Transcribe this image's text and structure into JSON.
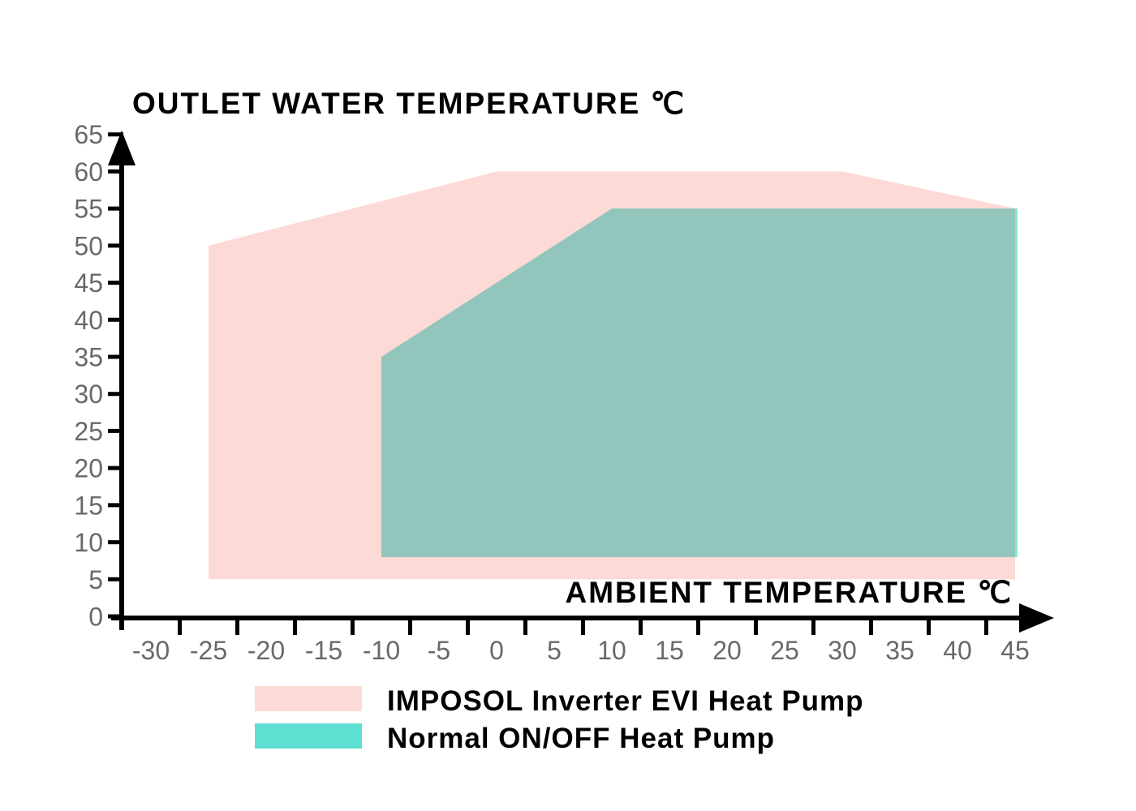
{
  "chart_data": {
    "type": "area",
    "title": "",
    "ylabel": "OUTLET WATER TEMPERATURE ℃",
    "xlabel": "AMBIENT TEMPERATURE ℃",
    "x_ticks": [
      "-30",
      "-25",
      "-20",
      "-15",
      "-10",
      "-5",
      "0",
      "5",
      "10",
      "15",
      "20",
      "25",
      "30",
      "35",
      "40",
      "45"
    ],
    "y_ticks": [
      "0",
      "5",
      "10",
      "15",
      "20",
      "25",
      "30",
      "35",
      "40",
      "45",
      "50",
      "55",
      "60",
      "65"
    ],
    "x_range": [
      -32.5,
      47.5
    ],
    "y_range": [
      0,
      65
    ],
    "grid": false,
    "legend_position": "bottom",
    "axis_color": "#000000",
    "tick_label_color": "#696969",
    "series": [
      {
        "name": "IMPOSOL Inverter EVI Heat Pump",
        "fill_color": "#FCDAD5",
        "legend_swatch_color": "#FCDAD5",
        "points_ambient_outlet": [
          [
            -25,
            50
          ],
          [
            0,
            60
          ],
          [
            30,
            60
          ],
          [
            45,
            55
          ],
          [
            45,
            5
          ],
          [
            -25,
            5
          ]
        ]
      },
      {
        "name": "Normal ON/OFF Heat Pump",
        "fill_color": "#92C5BB",
        "legend_swatch_color": "#5FE0D3",
        "edge_highlight_color": "#7FE8DB",
        "points_ambient_outlet": [
          [
            -10,
            35
          ],
          [
            10,
            55
          ],
          [
            45,
            55
          ],
          [
            45,
            8
          ],
          [
            -10,
            8
          ]
        ]
      }
    ],
    "legend": [
      {
        "label": "IMPOSOL Inverter EVI Heat Pump"
      },
      {
        "label": "Normal ON/OFF Heat Pump"
      }
    ]
  }
}
